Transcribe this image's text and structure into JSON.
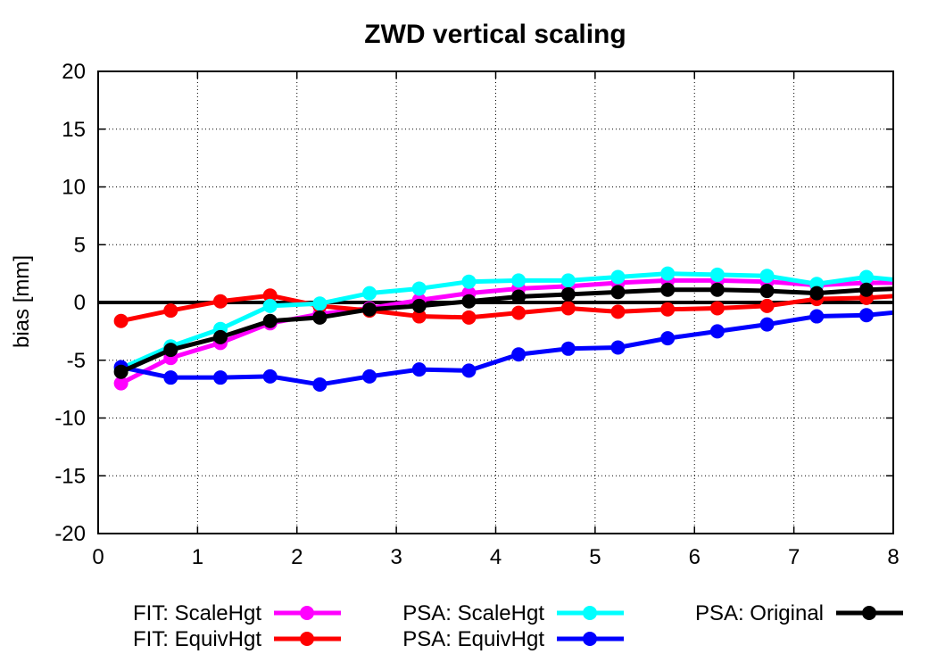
{
  "chart_data": {
    "type": "line",
    "title": "ZWD vertical scaling",
    "xlabel": "",
    "ylabel": "bias [mm]",
    "xlim": [
      0,
      8
    ],
    "ylim": [
      -20,
      20
    ],
    "x_ticks": [
      "0",
      "1",
      "2",
      "3",
      "4",
      "5",
      "6",
      "7",
      "8"
    ],
    "y_ticks": [
      "20",
      "15",
      "10",
      "5",
      "0",
      "-5",
      "-10",
      "-15",
      "-20"
    ],
    "grid": true,
    "legend_position": "bottom",
    "x": [
      0.23,
      0.73,
      1.23,
      1.73,
      2.23,
      2.73,
      3.23,
      3.73,
      4.23,
      4.73,
      5.23,
      5.73,
      6.23,
      6.73,
      7.23,
      7.73,
      8.1
    ],
    "series": [
      {
        "name": "FIT: ScaleHgt",
        "color": "#ff00ff",
        "values": [
          -7.0,
          -4.8,
          -3.5,
          -1.8,
          -1.0,
          -0.5,
          0.2,
          0.8,
          1.2,
          1.4,
          1.7,
          1.9,
          1.9,
          1.8,
          1.5,
          1.7,
          1.7
        ]
      },
      {
        "name": "FIT: EquivHgt",
        "color": "#ff0000",
        "values": [
          -1.6,
          -0.7,
          0.1,
          0.6,
          -0.3,
          -0.7,
          -1.2,
          -1.3,
          -0.9,
          -0.5,
          -0.8,
          -0.6,
          -0.5,
          -0.3,
          0.3,
          0.4,
          0.6
        ]
      },
      {
        "name": "PSA: ScaleHgt",
        "color": "#00ffff",
        "values": [
          -5.7,
          -3.8,
          -2.3,
          -0.3,
          -0.1,
          0.8,
          1.2,
          1.8,
          1.9,
          1.9,
          2.2,
          2.5,
          2.4,
          2.3,
          1.6,
          2.2,
          1.9
        ]
      },
      {
        "name": "PSA: EquivHgt",
        "color": "#0000ff",
        "values": [
          -5.6,
          -6.5,
          -6.5,
          -6.4,
          -7.1,
          -6.4,
          -5.8,
          -5.9,
          -4.5,
          -4.0,
          -3.9,
          -3.1,
          -2.5,
          -1.9,
          -1.2,
          -1.1,
          -0.8
        ]
      },
      {
        "name": "PSA: Original",
        "color": "#000000",
        "values": [
          -6.0,
          -4.1,
          -3.0,
          -1.6,
          -1.3,
          -0.6,
          -0.3,
          0.1,
          0.5,
          0.7,
          0.9,
          1.1,
          1.1,
          1.0,
          0.8,
          1.1,
          1.2
        ]
      }
    ]
  }
}
